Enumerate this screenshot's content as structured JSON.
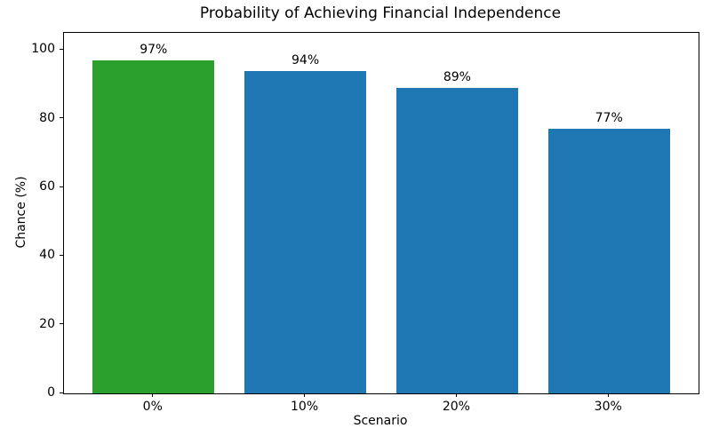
{
  "chart_data": {
    "type": "bar",
    "title": "Probability of Achieving Financial Independence",
    "xlabel": "Scenario",
    "ylabel": "Chance (%)",
    "categories": [
      "0%",
      "10%",
      "20%",
      "30%"
    ],
    "values": [
      97,
      94,
      89,
      77
    ],
    "bar_labels": [
      "97%",
      "94%",
      "89%",
      "77%"
    ],
    "bar_colors": [
      "#2ca02c",
      "#1f77b4",
      "#1f77b4",
      "#1f77b4"
    ],
    "highlight_color": "#2ca02c",
    "default_bar_color": "#1f77b4",
    "ylim": [
      0,
      105
    ],
    "yticks": [
      0,
      20,
      40,
      60,
      80,
      100
    ],
    "bar_width_fraction": 0.8,
    "grid": false,
    "legend": "none"
  }
}
